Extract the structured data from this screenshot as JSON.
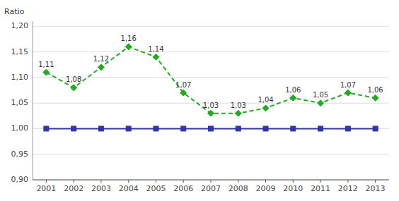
{
  "chart_data": {
    "type": "line",
    "y_label": "Ratio",
    "x": [
      2001,
      2002,
      2003,
      2004,
      2005,
      2006,
      2007,
      2008,
      2009,
      2010,
      2011,
      2012,
      2013
    ],
    "xlim": [
      2000.5,
      2013.5
    ],
    "xticks": [
      2001,
      2002,
      2003,
      2004,
      2005,
      2006,
      2007,
      2008,
      2009,
      2010,
      2011,
      2012,
      2013
    ],
    "ylim": [
      0.9,
      1.21
    ],
    "yticks": [
      {
        "value": 0.9,
        "label": "0,90"
      },
      {
        "value": 0.95,
        "label": "0,95"
      },
      {
        "value": 1.0,
        "label": "1,00"
      },
      {
        "value": 1.05,
        "label": "1,05"
      },
      {
        "value": 1.1,
        "label": "1,10"
      },
      {
        "value": 1.15,
        "label": "1,15"
      },
      {
        "value": 1.2,
        "label": "1,20"
      }
    ],
    "grid": true,
    "series": [
      {
        "color": "#3333AA",
        "marker": "square",
        "line_style": "solid",
        "values": [
          1.0,
          1.0,
          1.0,
          1.0,
          1.0,
          1.0,
          1.0,
          1.0,
          1.0,
          1.0,
          1.0,
          1.0,
          1.0
        ]
      },
      {
        "color": "#22AA22",
        "marker": "diamond",
        "line_style": "dashed",
        "data_labels": true,
        "values": [
          1.11,
          1.08,
          1.12,
          1.16,
          1.14,
          1.07,
          1.03,
          1.03,
          1.04,
          1.06,
          1.05,
          1.07,
          1.06
        ],
        "value_labels": [
          "1,11",
          "1,08",
          "1,12",
          "1,16",
          "1,14",
          "1,07",
          "1,03",
          "1,03",
          "1,04",
          "1,06",
          "1,05",
          "1,07",
          "1,06"
        ]
      }
    ]
  }
}
